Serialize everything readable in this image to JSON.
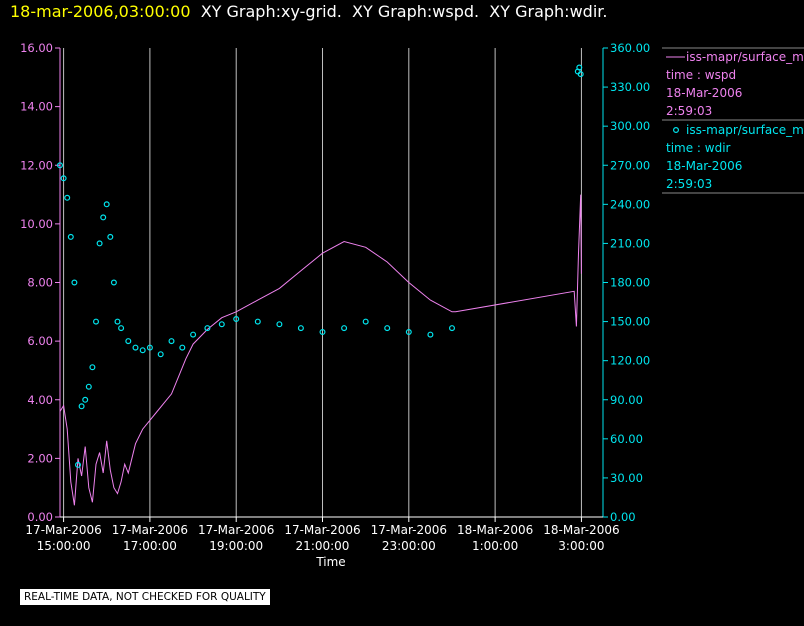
{
  "header": {
    "timestamp": "18-mar-2006,03:00:00",
    "graphs": [
      "XY Graph:xy-grid.",
      "XY Graph:wspd.",
      "XY Graph:wdir."
    ]
  },
  "footer_note": "REAL-TIME DATA, NOT CHECKED FOR QUALITY",
  "colors": {
    "wspd": "#ee82ee",
    "wdir": "#00e5ee",
    "timestamp": "#ffff00",
    "grid": "#c0c0c0"
  },
  "legend": {
    "entries": [
      {
        "series": "iss-mapr/surface_m",
        "line1": "time : wspd",
        "line2": "18-Mar-2006",
        "line3": "2:59:03"
      },
      {
        "series": "iss-mapr/surface_m",
        "line1": "time : wdir",
        "line2": "18-Mar-2006",
        "line3": "2:59:03"
      }
    ]
  },
  "chart_data": {
    "type": "line",
    "xlabel": "Time",
    "x_ticks": [
      {
        "date": "17-Mar-2006",
        "time": "15:00:00"
      },
      {
        "date": "17-Mar-2006",
        "time": "17:00:00"
      },
      {
        "date": "17-Mar-2006",
        "time": "19:00:00"
      },
      {
        "date": "17-Mar-2006",
        "time": "21:00:00"
      },
      {
        "date": "17-Mar-2006",
        "time": "23:00:00"
      },
      {
        "date": "18-Mar-2006",
        "time": "1:00:00"
      },
      {
        "date": "18-Mar-2006",
        "time": "3:00:00"
      }
    ],
    "xlim": [
      "17-Mar-2006 14:55",
      "18-Mar-2006 03:30"
    ],
    "grid": "vertical lines at x ticks",
    "y_left": {
      "ylim": [
        0,
        16
      ],
      "ticks": [
        "0.00",
        "2.00",
        "4.00",
        "6.00",
        "8.00",
        "10.00",
        "12.00",
        "14.00",
        "16.00"
      ]
    },
    "y_right": {
      "ylim": [
        0,
        360
      ],
      "ticks": [
        "0.00",
        "30.00",
        "60.00",
        "90.00",
        "120.00",
        "150.00",
        "180.00",
        "210.00",
        "240.00",
        "270.00",
        "300.00",
        "330.00",
        "360.00"
      ]
    },
    "series": [
      {
        "axis": "left",
        "style": "line",
        "points": [
          [
            "17-Mar-2006 14:55",
            3.6
          ],
          [
            "17-Mar-2006 15:00",
            3.8
          ],
          [
            "17-Mar-2006 15:05",
            3.0
          ],
          [
            "17-Mar-2006 15:10",
            1.2
          ],
          [
            "17-Mar-2006 15:15",
            0.4
          ],
          [
            "17-Mar-2006 15:20",
            2.0
          ],
          [
            "17-Mar-2006 15:25",
            1.4
          ],
          [
            "17-Mar-2006 15:30",
            2.4
          ],
          [
            "17-Mar-2006 15:35",
            1.0
          ],
          [
            "17-Mar-2006 15:40",
            0.5
          ],
          [
            "17-Mar-2006 15:45",
            1.8
          ],
          [
            "17-Mar-2006 15:50",
            2.2
          ],
          [
            "17-Mar-2006 15:55",
            1.5
          ],
          [
            "17-Mar-2006 16:00",
            2.6
          ],
          [
            "17-Mar-2006 16:05",
            1.6
          ],
          [
            "17-Mar-2006 16:10",
            1.0
          ],
          [
            "17-Mar-2006 16:15",
            0.8
          ],
          [
            "17-Mar-2006 16:20",
            1.2
          ],
          [
            "17-Mar-2006 16:25",
            1.8
          ],
          [
            "17-Mar-2006 16:30",
            1.5
          ],
          [
            "17-Mar-2006 16:40",
            2.5
          ],
          [
            "17-Mar-2006 16:50",
            3.0
          ],
          [
            "17-Mar-2006 17:00",
            3.3
          ],
          [
            "17-Mar-2006 17:10",
            3.6
          ],
          [
            "17-Mar-2006 17:20",
            3.9
          ],
          [
            "17-Mar-2006 17:30",
            4.2
          ],
          [
            "17-Mar-2006 17:40",
            4.8
          ],
          [
            "17-Mar-2006 17:50",
            5.4
          ],
          [
            "17-Mar-2006 18:00",
            5.9
          ],
          [
            "17-Mar-2006 18:20",
            6.4
          ],
          [
            "17-Mar-2006 18:40",
            6.8
          ],
          [
            "17-Mar-2006 19:00",
            7.0
          ],
          [
            "17-Mar-2006 19:30",
            7.4
          ],
          [
            "17-Mar-2006 20:00",
            7.8
          ],
          [
            "17-Mar-2006 20:30",
            8.4
          ],
          [
            "17-Mar-2006 21:00",
            9.0
          ],
          [
            "17-Mar-2006 21:30",
            9.4
          ],
          [
            "17-Mar-2006 22:00",
            9.2
          ],
          [
            "17-Mar-2006 22:30",
            8.7
          ],
          [
            "17-Mar-2006 23:00",
            8.0
          ],
          [
            "17-Mar-2006 23:30",
            7.4
          ],
          [
            "18-Mar-2006 00:00",
            7.0
          ],
          [
            "18-Mar-2006 00:05",
            7.0
          ],
          [
            "18-Mar-2006 02:50",
            7.7
          ],
          [
            "18-Mar-2006 02:53",
            6.5
          ],
          [
            "18-Mar-2006 02:56",
            9.0
          ],
          [
            "18-Mar-2006 02:59",
            11.0
          ],
          [
            "18-Mar-2006 03:00",
            8.3
          ]
        ]
      },
      {
        "axis": "right",
        "style": "markers",
        "points": [
          [
            "17-Mar-2006 14:55",
            270
          ],
          [
            "17-Mar-2006 15:00",
            260
          ],
          [
            "17-Mar-2006 15:05",
            245
          ],
          [
            "17-Mar-2006 15:10",
            215
          ],
          [
            "17-Mar-2006 15:15",
            180
          ],
          [
            "17-Mar-2006 15:20",
            40
          ],
          [
            "17-Mar-2006 15:25",
            85
          ],
          [
            "17-Mar-2006 15:30",
            90
          ],
          [
            "17-Mar-2006 15:35",
            100
          ],
          [
            "17-Mar-2006 15:40",
            115
          ],
          [
            "17-Mar-2006 15:45",
            150
          ],
          [
            "17-Mar-2006 15:50",
            210
          ],
          [
            "17-Mar-2006 15:55",
            230
          ],
          [
            "17-Mar-2006 16:00",
            240
          ],
          [
            "17-Mar-2006 16:05",
            215
          ],
          [
            "17-Mar-2006 16:10",
            180
          ],
          [
            "17-Mar-2006 16:15",
            150
          ],
          [
            "17-Mar-2006 16:20",
            145
          ],
          [
            "17-Mar-2006 16:30",
            135
          ],
          [
            "17-Mar-2006 16:40",
            130
          ],
          [
            "17-Mar-2006 16:50",
            128
          ],
          [
            "17-Mar-2006 17:00",
            130
          ],
          [
            "17-Mar-2006 17:15",
            125
          ],
          [
            "17-Mar-2006 17:30",
            135
          ],
          [
            "17-Mar-2006 17:45",
            130
          ],
          [
            "17-Mar-2006 18:00",
            140
          ],
          [
            "17-Mar-2006 18:20",
            145
          ],
          [
            "17-Mar-2006 18:40",
            148
          ],
          [
            "17-Mar-2006 19:00",
            152
          ],
          [
            "17-Mar-2006 19:30",
            150
          ],
          [
            "17-Mar-2006 20:00",
            148
          ],
          [
            "17-Mar-2006 20:30",
            145
          ],
          [
            "17-Mar-2006 21:00",
            142
          ],
          [
            "17-Mar-2006 21:30",
            145
          ],
          [
            "17-Mar-2006 22:00",
            150
          ],
          [
            "17-Mar-2006 22:30",
            145
          ],
          [
            "17-Mar-2006 23:00",
            142
          ],
          [
            "17-Mar-2006 23:30",
            140
          ],
          [
            "18-Mar-2006 00:00",
            145
          ],
          [
            "18-Mar-2006 02:55",
            342
          ],
          [
            "18-Mar-2006 02:57",
            345
          ],
          [
            "18-Mar-2006 02:59",
            340
          ]
        ]
      }
    ]
  }
}
